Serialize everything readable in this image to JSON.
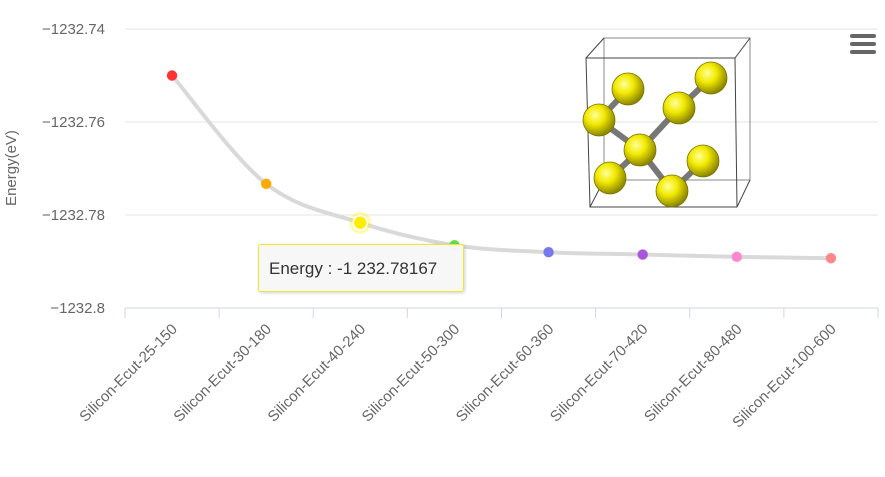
{
  "chart_data": {
    "type": "line",
    "title": "",
    "xlabel": "",
    "ylabel": "Energy(eV)",
    "ylim": [
      -1232.8,
      -1232.74
    ],
    "yticks": [
      "−1232.74",
      "−1232.76",
      "−1232.78",
      "−1232.8"
    ],
    "ytick_values": [
      -1232.74,
      -1232.76,
      -1232.78,
      -1232.8
    ],
    "categories": [
      "Silicon-Ecut-25-150",
      "Silicon-Ecut-30-180",
      "Silicon-Ecut-40-240",
      "Silicon-Ecut-50-300",
      "Silicon-Ecut-60-360",
      "Silicon-Ecut-70-420",
      "Silicon-Ecut-80-480",
      "Silicon-Ecut-100-600"
    ],
    "series": [
      {
        "values": [
          -1232.75,
          -1232.7733,
          -1232.78167,
          -1232.7865,
          -1232.788,
          -1232.7885,
          -1232.789,
          -1232.7893
        ]
      }
    ],
    "point_colors": [
      "#ff3333",
      "#ffaa00",
      "#ffee00",
      "#66dd44",
      "#7777ee",
      "#aa55dd",
      "#ff88cc",
      "#ff8888"
    ],
    "line_color": "#d9d9d9",
    "grid": true,
    "legend": "none",
    "highlight_index": 2,
    "tooltip": {
      "text": "Energy : -1 232.78167"
    },
    "inset": "silicon crystal structure rendering with yellow atoms in a unit cell box"
  },
  "menu": {
    "icon": "hamburger-menu-icon"
  }
}
